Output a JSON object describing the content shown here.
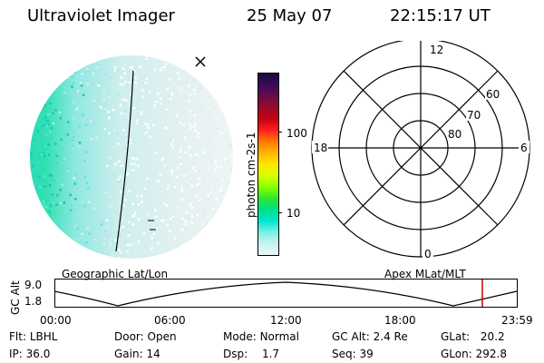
{
  "header": {
    "title": "Ultraviolet Imager",
    "date": "25 May 07",
    "time": "22:15:17 UT"
  },
  "colorbar": {
    "label": "photon cm-2s-1",
    "ticks": [
      "100",
      "10"
    ],
    "stops": [
      "#1a0a3a",
      "#3a0a5a",
      "#6a0a4a",
      "#9a0a2a",
      "#c80014",
      "#ff1e1e",
      "#ff7a00",
      "#ffb400",
      "#ffe600",
      "#d8ff00",
      "#8cff00",
      "#2ee62e",
      "#00e08a",
      "#00e6d2",
      "#7af0e6",
      "#c8f4f0",
      "#eaf6f4"
    ]
  },
  "polar": {
    "labels_mlt": [
      "12",
      "18",
      "6",
      "0"
    ],
    "labels_lat": [
      "60",
      "70",
      "80"
    ]
  },
  "orbit": {
    "left_label": "Geographic Lat/Lon",
    "right_label": "Apex MLat/MLT",
    "axis_title": "GC Alt",
    "y_ticks": [
      "9.0",
      "1.8"
    ],
    "x_ticks": [
      "00:00",
      "06:00",
      "12:00",
      "18:00",
      "23:59"
    ],
    "marker_color": "#cc0000"
  },
  "info": {
    "flt_label": "Flt:",
    "flt_value": "LBHL",
    "ip_label": "IP:",
    "ip_value": "36.0",
    "door_label": "Door:",
    "door_value": "Open",
    "gain_label": "Gain:",
    "gain_value": "14",
    "mode_label": "Mode:",
    "mode_value": "Normal",
    "dsp_label": "Dsp:",
    "dsp_value": "1.7",
    "gcalt_label": "GC Alt:",
    "gcalt_value": "2.4 Re",
    "seq_label": "Seq:",
    "seq_value": "39",
    "glat_label": "GLat:",
    "glat_value": "20.2",
    "glon_label": "GLon:",
    "glon_value": "292.8"
  }
}
